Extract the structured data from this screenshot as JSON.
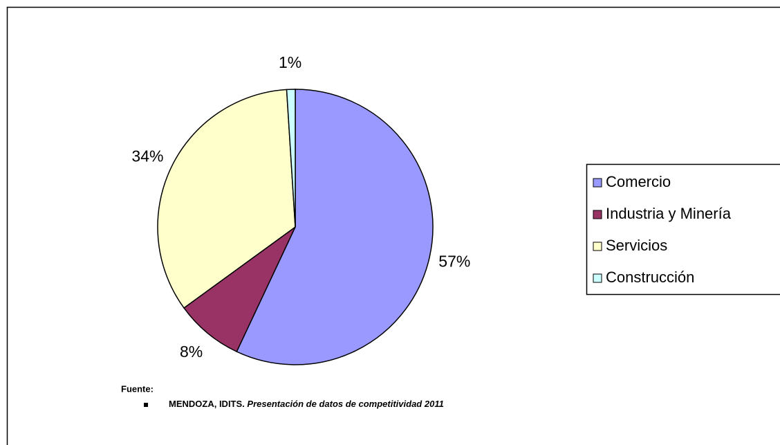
{
  "chart_data": {
    "type": "pie",
    "categories": [
      "Comercio",
      "Industria y Minería",
      "Servicios",
      "Construcción"
    ],
    "values": [
      57,
      8,
      34,
      1
    ],
    "value_labels": [
      "57%",
      "8%",
      "34%",
      "1%"
    ],
    "colors": [
      "#9999ff",
      "#993366",
      "#ffffcc",
      "#ccffff"
    ],
    "legend": "right",
    "source_label": "Fuente:",
    "source_author": "MENDOZA, IDITS.",
    "source_title": "Presentación de datos de competitividad 2011"
  }
}
